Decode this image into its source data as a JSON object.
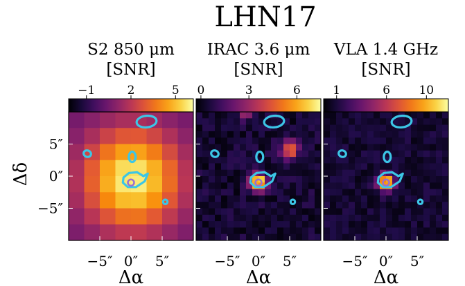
{
  "chart_data": {
    "type": "heatmap",
    "title": "LHN17",
    "xlabel": "Δα",
    "ylabel": "Δδ",
    "x_unit": "arcsec",
    "y_unit": "arcsec",
    "x_ticks": [
      "−5″",
      "0″",
      "5″"
    ],
    "y_ticks": [
      "5″",
      "0″",
      "−5″"
    ],
    "x_tick_values": [
      -5,
      0,
      5
    ],
    "y_tick_values": [
      5,
      0,
      -5
    ],
    "xlim": [
      -10,
      10
    ],
    "ylim": [
      -10,
      10
    ],
    "grid": false,
    "contour_color": "#3cc6e6",
    "contour_color_name": "cyan",
    "source_marker_color": "#9a6fd0",
    "colormap": "inferno",
    "colorbar_position": "top",
    "panels": [
      {
        "title_line1": "S2 850 μm",
        "title_line2": "[SNR]",
        "colorbar_ticks": [
          "−1",
          "2",
          "5"
        ],
        "colorbar_tick_values": [
          -1,
          2,
          5
        ],
        "colorbar_range": [
          -2.2,
          6.2
        ],
        "grid_size": 8,
        "pixel_arcsec": 2.5,
        "noise": 0,
        "baseline": 0.2,
        "sources": [
          {
            "x": 0.2,
            "y": -0.5,
            "amp": 5.8,
            "sigma": 5.6
          }
        ]
      },
      {
        "title_line1": "IRAC 3.6 μm",
        "title_line2": "[SNR]",
        "colorbar_ticks": [
          "0",
          "3",
          "6"
        ],
        "colorbar_tick_values": [
          0,
          3,
          6
        ],
        "colorbar_range": [
          -0.3,
          7.5
        ],
        "grid_size": 20,
        "pixel_arcsec": 1.0,
        "noise": 0.55,
        "baseline": 0.4,
        "sources": [
          {
            "x": 0.0,
            "y": -1.0,
            "amp": 7.8,
            "sigma": 0.9
          },
          {
            "x": 5.0,
            "y": 4.2,
            "amp": 4.8,
            "sigma": 1.0
          },
          {
            "x": -2.0,
            "y": 10.0,
            "amp": 3.0,
            "sigma": 0.8
          }
        ]
      },
      {
        "title_line1": "VLA 1.4 GHz",
        "title_line2": "[SNR]",
        "colorbar_ticks": [
          "1",
          "6",
          "10"
        ],
        "colorbar_tick_values": [
          1,
          6,
          10
        ],
        "colorbar_range": [
          -0.3,
          12.2
        ],
        "grid_size": 20,
        "pixel_arcsec": 1.0,
        "noise": 0.7,
        "baseline": 0.8,
        "sources": [
          {
            "x": 0.0,
            "y": -1.0,
            "amp": 11.5,
            "sigma": 0.9
          }
        ]
      }
    ],
    "contours": [
      {
        "cx": 2.5,
        "cy": 8.5,
        "rx": 1.6,
        "ry": 0.9,
        "rot": -6
      },
      {
        "cx": -7.0,
        "cy": 3.5,
        "rx": 0.6,
        "ry": 0.5,
        "rot": 20
      },
      {
        "cx": 0.2,
        "cy": 3.0,
        "rx": 0.55,
        "ry": 0.8,
        "rot": 0
      },
      {
        "cx": 5.5,
        "cy": -4.0,
        "rx": 0.35,
        "ry": 0.35,
        "rot": 0
      }
    ],
    "contour_teardrop": [
      [
        -1.2,
        -0.2
      ],
      [
        -0.3,
        0.5
      ],
      [
        1.0,
        0.6
      ],
      [
        2.0,
        0.0
      ],
      [
        2.7,
        0.4
      ],
      [
        2.2,
        -0.8
      ],
      [
        0.8,
        -1.7
      ],
      [
        -0.5,
        -1.7
      ],
      [
        -1.3,
        -1.0
      ]
    ],
    "source_marker": {
      "x": 0.0,
      "y": -1.0
    }
  }
}
